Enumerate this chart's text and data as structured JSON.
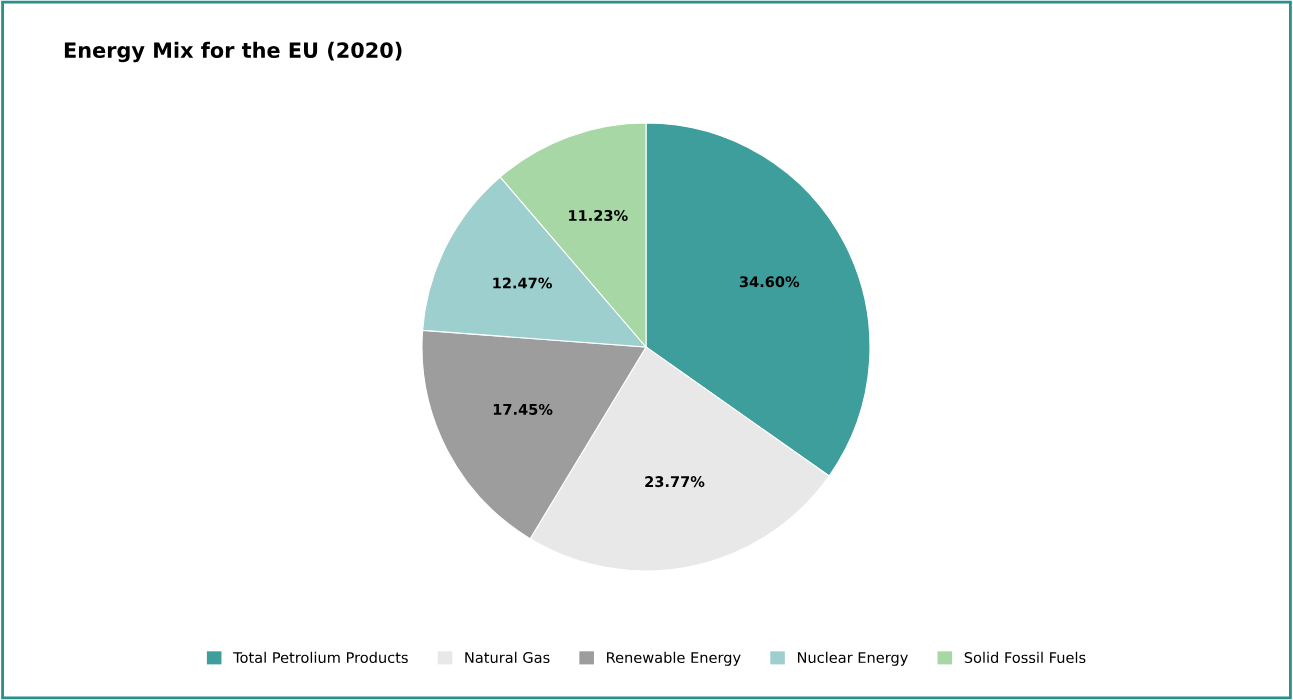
{
  "chart_data": {
    "type": "pie",
    "title": "Energy Mix for the EU (2020)",
    "categories": [
      "Total Petrolium Products",
      "Natural Gas",
      "Renewable Energy",
      "Nuclear Energy",
      "Solid Fossil Fuels"
    ],
    "values": [
      34.6,
      23.77,
      17.45,
      12.47,
      11.23
    ],
    "value_labels": [
      "34.60%",
      "23.77%",
      "17.45%",
      "12.47%",
      "11.23%"
    ],
    "colors": [
      "#3d9e9c",
      "#e8e8e8",
      "#9c9d9c",
      "#9ecfcf",
      "#a6d7a5"
    ],
    "legend": "bottom"
  }
}
